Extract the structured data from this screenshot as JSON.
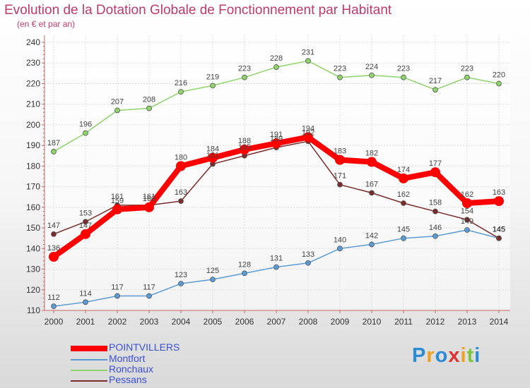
{
  "title": "Evolution de la Dotation Globale de Fonctionnement par Habitant",
  "subtitle": "(en € et par an)",
  "logo": {
    "letters": [
      "P",
      "r",
      "o",
      "x",
      "i",
      "t",
      "i"
    ]
  },
  "colors": {
    "pointvillers": "#ff0000",
    "montfort": "#5b9bd5",
    "ronchaux": "#8fd46a",
    "pessans": "#7a2b2b",
    "title": "#c03a6b"
  },
  "chart_data": {
    "type": "line",
    "title": "Evolution de la Dotation Globale de Fonctionnement par Habitant",
    "subtitle": "(en € et par an)",
    "x": [
      2000,
      2001,
      2002,
      2003,
      2004,
      2005,
      2006,
      2007,
      2008,
      2009,
      2010,
      2011,
      2012,
      2013,
      2014
    ],
    "ylim": [
      110,
      240
    ],
    "yticks": [
      110,
      120,
      130,
      140,
      150,
      160,
      170,
      180,
      190,
      200,
      210,
      220,
      230,
      240
    ],
    "grid": true,
    "legend_position": "bottom-left",
    "series": [
      {
        "name": "POINTVILLERS",
        "color": "#ff0000",
        "values": [
          136,
          147,
          159,
          160,
          180,
          184,
          188,
          191,
          194,
          183,
          182,
          174,
          177,
          162,
          163
        ]
      },
      {
        "name": "Montfort",
        "color": "#5b9bd5",
        "values": [
          112,
          114,
          117,
          117,
          123,
          125,
          128,
          131,
          133,
          140,
          142,
          145,
          146,
          149,
          145
        ]
      },
      {
        "name": "Ronchaux",
        "color": "#8fd46a",
        "values": [
          187,
          196,
          207,
          208,
          216,
          219,
          223,
          228,
          231,
          223,
          224,
          223,
          217,
          223,
          220
        ]
      },
      {
        "name": "Pessans",
        "color": "#7a2b2b",
        "values": [
          147,
          153,
          161,
          161,
          163,
          181,
          185,
          189,
          192,
          171,
          167,
          162,
          158,
          154,
          145
        ]
      }
    ]
  }
}
